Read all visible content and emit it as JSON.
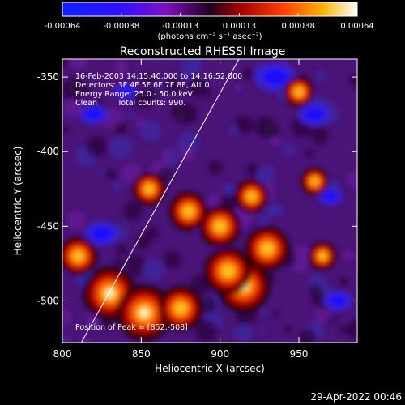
{
  "chart_data": {
    "type": "heatmap",
    "title": "Reconstructed RHESSI Image",
    "xlabel": "Heliocentric X (arcsec)",
    "ylabel": "Heliocentric Y (arcsec)",
    "xlim": [
      800,
      987
    ],
    "ylim": [
      -528,
      -338
    ],
    "x_ticks": [
      800,
      850,
      900,
      950
    ],
    "y_ticks": [
      -350,
      -400,
      -450,
      -500
    ],
    "colorbar": {
      "range": [
        -0.00064,
        0.00064
      ],
      "ticks": [
        "-0.00064",
        "-0.00038",
        "-0.00013",
        "0.00013",
        "0.00038",
        "0.00064"
      ],
      "unit_label": "(photons cm⁻² s⁻¹ asec⁻²)"
    },
    "annotations": {
      "time": "16-Feb-2003 14:15:40.000 to 14:16:52.000",
      "detectors": "Detectors: 3F 4F 5F 6F 7F 8F, Att 0",
      "energy": "Energy Range: 25.0 - 50.0 keV",
      "method": "Clean",
      "counts": "Total counts: 990.",
      "peak": "Position of Peak = [852,-508]"
    },
    "limb_line": [
      [
        812,
        -528
      ],
      [
        912,
        -338
      ]
    ],
    "hot_regions": [
      {
        "x": 830,
        "y": -495,
        "level": 0.95
      },
      {
        "x": 852,
        "y": -508,
        "level": 1.0
      },
      {
        "x": 875,
        "y": -505,
        "level": 0.8
      },
      {
        "x": 915,
        "y": -490,
        "level": 0.95
      },
      {
        "x": 905,
        "y": -480,
        "level": 0.85
      },
      {
        "x": 900,
        "y": -450,
        "level": 0.75
      },
      {
        "x": 930,
        "y": -465,
        "level": 0.8
      },
      {
        "x": 880,
        "y": -440,
        "level": 0.7
      },
      {
        "x": 855,
        "y": -425,
        "level": 0.6
      },
      {
        "x": 920,
        "y": -430,
        "level": 0.6
      },
      {
        "x": 810,
        "y": -470,
        "level": 0.7
      },
      {
        "x": 965,
        "y": -470,
        "level": 0.5
      },
      {
        "x": 960,
        "y": -420,
        "level": 0.5
      },
      {
        "x": 950,
        "y": -360,
        "level": 0.55
      }
    ],
    "cold_regions": [
      {
        "x": 935,
        "y": -350,
        "level": 1.0
      },
      {
        "x": 960,
        "y": -375,
        "level": 0.8
      },
      {
        "x": 825,
        "y": -455,
        "level": 0.85
      },
      {
        "x": 820,
        "y": -375,
        "level": 0.7
      },
      {
        "x": 975,
        "y": -500,
        "level": 0.7
      },
      {
        "x": 970,
        "y": -430,
        "level": 0.6
      },
      {
        "x": 840,
        "y": -360,
        "level": 0.55
      }
    ]
  },
  "footer": {
    "timestamp": "29-Apr-2022 00:46"
  }
}
